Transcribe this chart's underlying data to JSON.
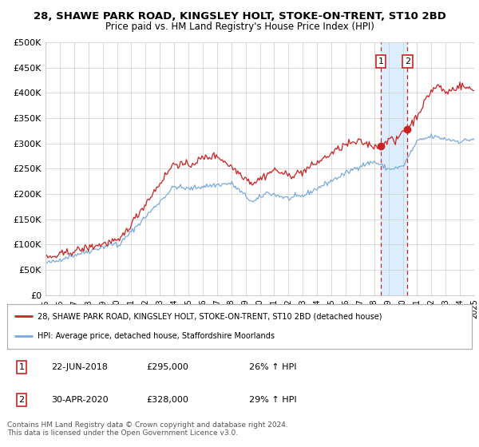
{
  "title": "28, SHAWE PARK ROAD, KINGSLEY HOLT, STOKE-ON-TRENT, ST10 2BD",
  "subtitle": "Price paid vs. HM Land Registry's House Price Index (HPI)",
  "legend_label_red": "28, SHAWE PARK ROAD, KINGSLEY HOLT, STOKE-ON-TRENT, ST10 2BD (detached house)",
  "legend_label_blue": "HPI: Average price, detached house, Staffordshire Moorlands",
  "annotation1_date": "22-JUN-2018",
  "annotation1_price": "£295,000",
  "annotation1_hpi": "26% ↑ HPI",
  "annotation1_year": 2018.47,
  "annotation1_value": 295000,
  "annotation2_date": "30-APR-2020",
  "annotation2_price": "£328,000",
  "annotation2_hpi": "29% ↑ HPI",
  "annotation2_year": 2020.33,
  "annotation2_value": 328000,
  "footer_line1": "Contains HM Land Registry data © Crown copyright and database right 2024.",
  "footer_line2": "This data is licensed under the Open Government Licence v3.0.",
  "red_color": "#cc2222",
  "blue_color": "#7aaadd",
  "shade_color": "#ddeeff",
  "grid_color": "#cccccc",
  "background_color": "#ffffff",
  "ylim": [
    0,
    500000
  ],
  "yticks": [
    0,
    50000,
    100000,
    150000,
    200000,
    250000,
    300000,
    350000,
    400000,
    450000,
    500000
  ],
  "xmin": 1995,
  "xmax": 2025
}
